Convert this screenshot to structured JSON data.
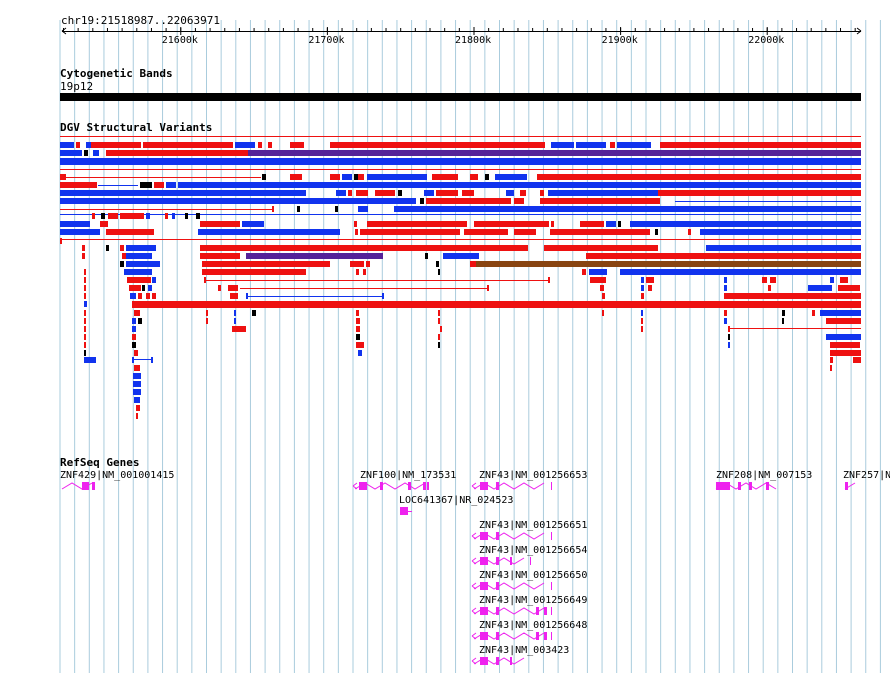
{
  "location": "chr19:21518987..22063971",
  "ruler": {
    "ticks": [
      {
        "label": "21600k",
        "pos": 21600000
      },
      {
        "label": "21700k",
        "pos": 21700000
      },
      {
        "label": "21800k",
        "pos": 21800000
      },
      {
        "label": "21900k",
        "pos": 21900000
      },
      {
        "label": "22000k",
        "pos": 22000000
      }
    ]
  },
  "tracks": {
    "cytobands": {
      "title": "Cytogenetic Bands",
      "band": "19p12"
    },
    "dgv": {
      "title": "DGV Structural Variants"
    },
    "refseq": {
      "title": "RefSeq Genes"
    }
  },
  "genes": [
    {
      "label": "ZNF429|NM_001001415"
    },
    {
      "label": "ZNF100|NM_173531"
    },
    {
      "label": "ZNF43|NM_001256653"
    },
    {
      "label": "ZNF208|NM_007153"
    },
    {
      "label": "ZNF257|N"
    },
    {
      "label": "LOC641367|NR_024523"
    },
    {
      "label": "ZNF43|NM_001256651"
    },
    {
      "label": "ZNF43|NM_001256654"
    },
    {
      "label": "ZNF43|NM_001256650"
    },
    {
      "label": "ZNF43|NM_001256649"
    },
    {
      "label": "ZNF43|NM_001256648"
    },
    {
      "label": "ZNF43|NM_003423"
    }
  ],
  "colors": {
    "gain": "#ee1111",
    "loss": "#1133ee",
    "complex": "#552299",
    "other": "#884411",
    "gene": "#ee22ee",
    "grid": "#aaccdd"
  }
}
